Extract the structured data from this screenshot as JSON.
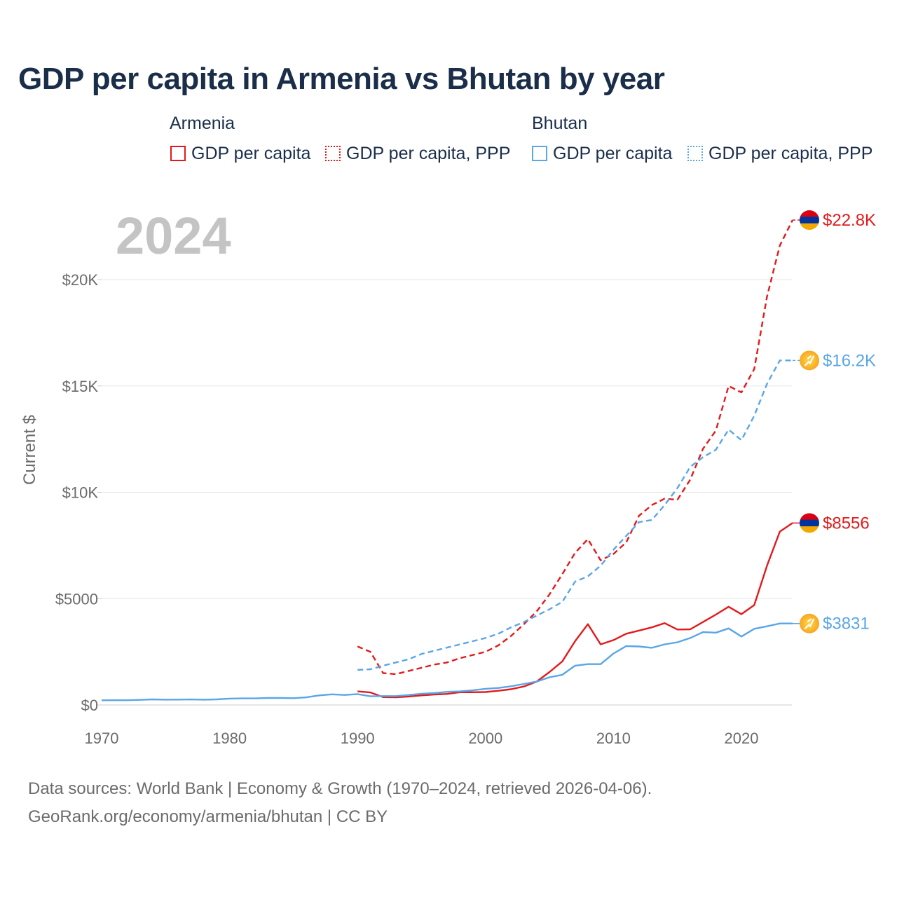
{
  "title": "GDP per capita in Armenia vs Bhutan by year",
  "legend": {
    "groups": [
      {
        "name": "Armenia",
        "color": "#e31a1c",
        "items": [
          {
            "label": "GDP per capita",
            "style": "solid"
          },
          {
            "label": "GDP per capita, PPP",
            "style": "dotted"
          }
        ]
      },
      {
        "name": "Bhutan",
        "color": "#5aa6e6",
        "items": [
          {
            "label": "GDP per capita",
            "style": "solid"
          },
          {
            "label": "GDP per capita, PPP",
            "style": "dotted"
          }
        ]
      }
    ]
  },
  "year_watermark": "2024",
  "source": {
    "line1": "Data sources: World Bank | Economy & Growth (1970–2024, retrieved 2026-04-06).",
    "line2": "GeoRank.org/economy/armenia/bhutan | CC BY"
  },
  "chart_data": {
    "type": "line",
    "title": "GDP per capita in Armenia vs Bhutan by year",
    "xlabel": "",
    "ylabel": "Current $",
    "xlim": [
      1970,
      2024
    ],
    "ylim": [
      0,
      23000
    ],
    "x_ticks": [
      1970,
      1980,
      1990,
      2000,
      2010,
      2020
    ],
    "x_tick_labels": [
      "1970",
      "1980",
      "1990",
      "2000",
      "2010",
      "2020"
    ],
    "y_ticks": [
      0,
      5000,
      10000,
      15000,
      20000
    ],
    "y_tick_labels": [
      "$0",
      "$5000",
      "$10K",
      "$15K",
      "$20K"
    ],
    "grid": true,
    "series": [
      {
        "name": "Armenia GDP per capita",
        "country": "Armenia",
        "color": "#e31a1c",
        "dash": "solid",
        "end_label": "$8556",
        "end_value": 8556,
        "points": [
          [
            1990,
            640
          ],
          [
            1991,
            590
          ],
          [
            1992,
            370
          ],
          [
            1993,
            360
          ],
          [
            1994,
            400
          ],
          [
            1995,
            450
          ],
          [
            1996,
            490
          ],
          [
            1997,
            520
          ],
          [
            1998,
            600
          ],
          [
            1999,
            600
          ],
          [
            2000,
            610
          ],
          [
            2001,
            670
          ],
          [
            2002,
            740
          ],
          [
            2003,
            870
          ],
          [
            2004,
            1100
          ],
          [
            2005,
            1550
          ],
          [
            2006,
            2050
          ],
          [
            2007,
            3000
          ],
          [
            2008,
            3800
          ],
          [
            2009,
            2850
          ],
          [
            2010,
            3050
          ],
          [
            2011,
            3350
          ],
          [
            2012,
            3500
          ],
          [
            2013,
            3650
          ],
          [
            2014,
            3850
          ],
          [
            2015,
            3550
          ],
          [
            2016,
            3560
          ],
          [
            2017,
            3900
          ],
          [
            2018,
            4250
          ],
          [
            2019,
            4620
          ],
          [
            2020,
            4270
          ],
          [
            2021,
            4700
          ],
          [
            2022,
            6550
          ],
          [
            2023,
            8150
          ],
          [
            2024,
            8556
          ]
        ]
      },
      {
        "name": "Armenia GDP per capita, PPP",
        "country": "Armenia",
        "color": "#e31a1c",
        "dash": "dashed",
        "end_label": "$22.8K",
        "end_value": 22800,
        "points": [
          [
            1990,
            2750
          ],
          [
            1991,
            2500
          ],
          [
            1992,
            1500
          ],
          [
            1993,
            1450
          ],
          [
            1994,
            1600
          ],
          [
            1995,
            1750
          ],
          [
            1996,
            1900
          ],
          [
            1997,
            2000
          ],
          [
            1998,
            2200
          ],
          [
            1999,
            2350
          ],
          [
            2000,
            2500
          ],
          [
            2001,
            2800
          ],
          [
            2002,
            3250
          ],
          [
            2003,
            3800
          ],
          [
            2004,
            4400
          ],
          [
            2005,
            5200
          ],
          [
            2006,
            6150
          ],
          [
            2007,
            7150
          ],
          [
            2008,
            7800
          ],
          [
            2009,
            6800
          ],
          [
            2010,
            7100
          ],
          [
            2011,
            7650
          ],
          [
            2012,
            8900
          ],
          [
            2013,
            9400
          ],
          [
            2014,
            9700
          ],
          [
            2015,
            9650
          ],
          [
            2016,
            10600
          ],
          [
            2017,
            12050
          ],
          [
            2018,
            12900
          ],
          [
            2019,
            15000
          ],
          [
            2020,
            14700
          ],
          [
            2021,
            15800
          ],
          [
            2022,
            19200
          ],
          [
            2023,
            21600
          ],
          [
            2024,
            22800
          ]
        ]
      },
      {
        "name": "Bhutan GDP per capita",
        "country": "Bhutan",
        "color": "#5aa6e6",
        "dash": "solid",
        "end_label": "$3831",
        "end_value": 3831,
        "points": [
          [
            1970,
            220
          ],
          [
            1971,
            225
          ],
          [
            1972,
            225
          ],
          [
            1973,
            240
          ],
          [
            1974,
            265
          ],
          [
            1975,
            250
          ],
          [
            1976,
            255
          ],
          [
            1977,
            260
          ],
          [
            1978,
            250
          ],
          [
            1979,
            265
          ],
          [
            1980,
            300
          ],
          [
            1981,
            310
          ],
          [
            1982,
            310
          ],
          [
            1983,
            330
          ],
          [
            1984,
            330
          ],
          [
            1985,
            320
          ],
          [
            1986,
            360
          ],
          [
            1987,
            450
          ],
          [
            1988,
            500
          ],
          [
            1989,
            470
          ],
          [
            1990,
            510
          ],
          [
            1991,
            410
          ],
          [
            1992,
            420
          ],
          [
            1993,
            420
          ],
          [
            1994,
            470
          ],
          [
            1995,
            530
          ],
          [
            1996,
            560
          ],
          [
            1997,
            620
          ],
          [
            1998,
            640
          ],
          [
            1999,
            690
          ],
          [
            2000,
            760
          ],
          [
            2001,
            800
          ],
          [
            2002,
            880
          ],
          [
            2003,
            990
          ],
          [
            2004,
            1100
          ],
          [
            2005,
            1300
          ],
          [
            2006,
            1420
          ],
          [
            2007,
            1850
          ],
          [
            2008,
            1920
          ],
          [
            2009,
            1920
          ],
          [
            2010,
            2420
          ],
          [
            2011,
            2770
          ],
          [
            2012,
            2750
          ],
          [
            2013,
            2690
          ],
          [
            2014,
            2850
          ],
          [
            2015,
            2950
          ],
          [
            2016,
            3150
          ],
          [
            2017,
            3430
          ],
          [
            2018,
            3400
          ],
          [
            2019,
            3600
          ],
          [
            2020,
            3220
          ],
          [
            2021,
            3580
          ],
          [
            2022,
            3700
          ],
          [
            2023,
            3831
          ],
          [
            2024,
            3831
          ]
        ]
      },
      {
        "name": "Bhutan GDP per capita, PPP",
        "country": "Bhutan",
        "color": "#5aa6e6",
        "dash": "dashed",
        "end_label": "$16.2K",
        "end_value": 16200,
        "points": [
          [
            1990,
            1650
          ],
          [
            1991,
            1680
          ],
          [
            1992,
            1850
          ],
          [
            1993,
            2000
          ],
          [
            1994,
            2150
          ],
          [
            1995,
            2400
          ],
          [
            1996,
            2550
          ],
          [
            1997,
            2700
          ],
          [
            1998,
            2850
          ],
          [
            1999,
            3000
          ],
          [
            2000,
            3150
          ],
          [
            2001,
            3350
          ],
          [
            2002,
            3650
          ],
          [
            2003,
            3900
          ],
          [
            2004,
            4200
          ],
          [
            2005,
            4500
          ],
          [
            2006,
            4850
          ],
          [
            2007,
            5800
          ],
          [
            2008,
            6050
          ],
          [
            2009,
            6550
          ],
          [
            2010,
            7300
          ],
          [
            2011,
            7950
          ],
          [
            2012,
            8600
          ],
          [
            2013,
            8700
          ],
          [
            2014,
            9400
          ],
          [
            2015,
            10200
          ],
          [
            2016,
            11200
          ],
          [
            2017,
            11650
          ],
          [
            2018,
            12000
          ],
          [
            2019,
            12950
          ],
          [
            2020,
            12450
          ],
          [
            2021,
            13600
          ],
          [
            2022,
            15100
          ],
          [
            2023,
            16200
          ],
          [
            2024,
            16200
          ]
        ]
      }
    ]
  }
}
